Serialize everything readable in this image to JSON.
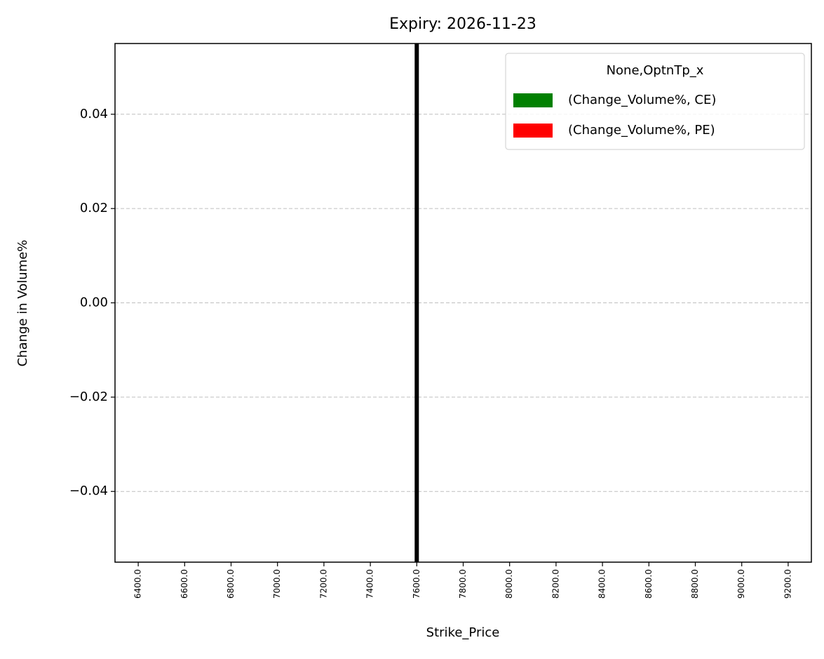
{
  "chart_data": {
    "type": "bar",
    "title": "Expiry: 2026-11-23",
    "x_label": "Strike_Price",
    "y_label": "Change in Volume%",
    "categories": [
      "6400.0",
      "6600.0",
      "6800.0",
      "7000.0",
      "7200.0",
      "7400.0",
      "7600.0",
      "7800.0",
      "8000.0",
      "8200.0",
      "8400.0",
      "8600.0",
      "8800.0",
      "9000.0",
      "9200.0"
    ],
    "series": [
      {
        "name": "(Change_Volume%, CE)",
        "color": "#008000",
        "values": [
          0,
          0,
          0,
          0,
          0,
          0,
          0,
          0,
          0,
          0,
          0,
          0,
          0,
          0,
          0
        ]
      },
      {
        "name": "(Change_Volume%, PE)",
        "color": "#ff0000",
        "values": [
          0,
          0,
          0,
          0,
          0,
          0,
          0,
          0,
          0,
          0,
          0,
          0,
          0,
          0,
          0
        ]
      }
    ],
    "legend_title": "None,OptnTp_x",
    "legend": "upper right",
    "ylim": [
      -0.055,
      0.055
    ],
    "yticks": [
      {
        "value": -0.04,
        "label": "−0.04"
      },
      {
        "value": -0.02,
        "label": "−0.02"
      },
      {
        "value": 0,
        "label": "0.00"
      },
      {
        "value": 0.02,
        "label": "0.02"
      },
      {
        "value": 0.04,
        "label": "0.04"
      }
    ],
    "grid": true,
    "vline": {
      "x": 7600,
      "color": "#000000"
    }
  }
}
